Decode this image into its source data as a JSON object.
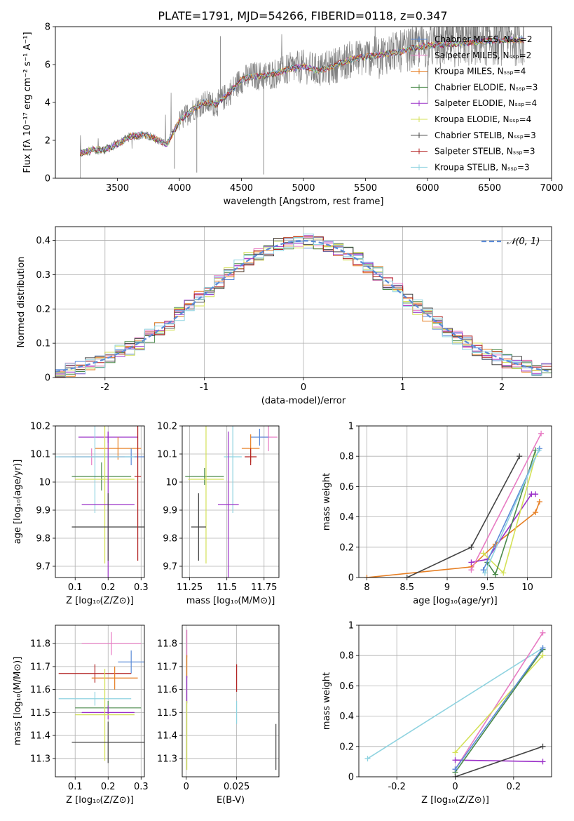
{
  "chart_data": [
    {
      "type": "line",
      "title": "PLATE=1791, MJD=54266, FIBERID=0118, z=0.347",
      "xlabel": "wavelength [Angstrom, rest frame]",
      "ylabel": "Flux [fλ 10⁻¹⁷ erg cm⁻² s⁻¹ A⁻¹]",
      "xlim": [
        3000,
        7000
      ],
      "ylim": [
        0,
        8
      ],
      "xticks": [
        3500,
        4000,
        4500,
        5000,
        5500,
        6000,
        6500,
        7000
      ],
      "yticks": [
        0,
        2,
        4,
        6,
        8
      ],
      "data_range": [
        3200,
        6780
      ],
      "continuum_anchors": [
        [
          3200,
          1.3
        ],
        [
          3300,
          1.5
        ],
        [
          3400,
          1.5
        ],
        [
          3500,
          1.8
        ],
        [
          3600,
          2.2
        ],
        [
          3700,
          2.3
        ],
        [
          3800,
          2.1
        ],
        [
          3900,
          1.8
        ],
        [
          4000,
          3.0
        ],
        [
          4100,
          3.6
        ],
        [
          4200,
          4.0
        ],
        [
          4300,
          3.9
        ],
        [
          4400,
          4.5
        ],
        [
          4500,
          5.2
        ],
        [
          4600,
          5.4
        ],
        [
          4700,
          5.4
        ],
        [
          4800,
          5.6
        ],
        [
          4900,
          5.8
        ],
        [
          5000,
          5.9
        ],
        [
          5100,
          5.7
        ],
        [
          5200,
          5.8
        ],
        [
          5300,
          6.1
        ],
        [
          5400,
          6.3
        ],
        [
          5500,
          6.4
        ],
        [
          5600,
          6.5
        ],
        [
          5700,
          6.6
        ],
        [
          5800,
          6.7
        ],
        [
          5900,
          6.9
        ],
        [
          6000,
          7.0
        ],
        [
          6200,
          7.1
        ],
        [
          6400,
          7.2
        ],
        [
          6600,
          7.3
        ],
        [
          6780,
          7.3
        ]
      ],
      "spikes": [
        [
          4140,
          0.3
        ],
        [
          4680,
          0.2
        ],
        [
          4330,
          7.5
        ],
        [
          3960,
          0.5
        ]
      ],
      "legend_position": "upper right",
      "series": [
        {
          "name": "Chabrier MILES, Nₛₛₚ=2",
          "color": "#5b8bd8"
        },
        {
          "name": "Salpeter MILES, Nₛₛₚ=2",
          "color": "#e77bc3"
        },
        {
          "name": "Kroupa MILES, Nₛₛₚ=4",
          "color": "#e67e22"
        },
        {
          "name": "Chabrier ELODIE, Nₛₛₚ=3",
          "color": "#4a8a4a"
        },
        {
          "name": "Salpeter ELODIE, Nₛₛₚ=4",
          "color": "#9b30c8"
        },
        {
          "name": "Kroupa ELODIE, Nₛₛₚ=4",
          "color": "#d4e157"
        },
        {
          "name": "Chabrier STELIB, Nₛₛₚ=3",
          "color": "#444444"
        },
        {
          "name": "Salpeter STELIB, Nₛₛₚ=3",
          "color": "#b22222"
        },
        {
          "name": "Kroupa STELIB, Nₛₛₚ=3",
          "color": "#8fd3e0"
        }
      ]
    },
    {
      "type": "line",
      "xlabel": "(data-model)/error",
      "ylabel": "Normed distribution",
      "xlim": [
        -2.5,
        2.5
      ],
      "ylim": [
        0,
        0.44
      ],
      "xticks": [
        -2,
        -1,
        0,
        1,
        2
      ],
      "yticks": [
        0.0,
        0.1,
        0.2,
        0.3,
        0.4
      ],
      "grid": true,
      "legend": "𝒩(0, 1)",
      "legend_position": "upper right",
      "curve": {
        "name": "𝒩(0, 1)",
        "mu": 0,
        "sigma": 1,
        "color": "#5b8bd8",
        "style": "dashed"
      },
      "histograms": {
        "bin_width": 0.1,
        "colors": [
          "#5b8bd8",
          "#e77bc3",
          "#e67e22",
          "#4a8a4a",
          "#9b30c8",
          "#d4e157",
          "#444444",
          "#b22222",
          "#8fd3e0"
        ]
      }
    },
    {
      "type": "scatter",
      "xlabel": "Z [log₁₀(Z/Z⊙)]",
      "ylabel": "age  [log₁₀(age/yr)]",
      "xlim": [
        0.04,
        0.31
      ],
      "ylim": [
        9.66,
        10.2
      ],
      "xticks": [
        0.1,
        0.2,
        0.3
      ],
      "yticks": [
        9.7,
        9.8,
        9.9,
        10.0,
        10.1,
        10.2
      ],
      "points": [
        {
          "x": 0.2,
          "y": 10.16,
          "xerr": 0.09,
          "yerr": 0.02,
          "color": "#9b30c8"
        },
        {
          "x": 0.23,
          "y": 10.12,
          "xerr": 0.07,
          "yerr": 0.04,
          "color": "#e67e22"
        },
        {
          "x": 0.27,
          "y": 10.09,
          "xerr": 0.18,
          "yerr": 0.03,
          "color": "#5b8bd8"
        },
        {
          "x": 0.15,
          "y": 10.09,
          "xerr": 0.1,
          "yerr": 0.03,
          "color": "#e77bc3"
        },
        {
          "x": 0.16,
          "y": 10.09,
          "xerr": 0.12,
          "yerr": 0.2,
          "color": "#8fd3e0"
        },
        {
          "x": 0.18,
          "y": 10.02,
          "xerr": 0.09,
          "yerr": 0.05,
          "color": "#4a8a4a"
        },
        {
          "x": 0.19,
          "y": 10.01,
          "xerr": 0.09,
          "yerr": 0.3,
          "color": "#d4e157"
        },
        {
          "x": 0.2,
          "y": 9.92,
          "xerr": 0.08,
          "yerr": 0.26,
          "color": "#9b30c8"
        },
        {
          "x": 0.2,
          "y": 9.84,
          "xerr": 0.11,
          "yerr": 0.12,
          "color": "#444444"
        },
        {
          "x": 0.29,
          "y": 10.02,
          "xerr": 0.01,
          "yerr": 0.3,
          "color": "#b22222"
        }
      ]
    },
    {
      "type": "scatter",
      "xlabel": "mass [log₁₀(M/M⊙)]",
      "xlim": [
        11.2,
        11.85
      ],
      "ylim": [
        9.66,
        10.2
      ],
      "xticks": [
        11.25,
        11.5,
        11.75
      ],
      "yticks": [
        9.7,
        9.8,
        9.9,
        10.0,
        10.1,
        10.2
      ],
      "points": [
        {
          "x": 11.78,
          "y": 10.16,
          "xerr": 0.06,
          "yerr": 0.05,
          "color": "#e77bc3"
        },
        {
          "x": 11.72,
          "y": 10.16,
          "xerr": 0.06,
          "yerr": 0.03,
          "color": "#5b8bd8"
        },
        {
          "x": 11.66,
          "y": 10.12,
          "xerr": 0.06,
          "yerr": 0.05,
          "color": "#e67e22"
        },
        {
          "x": 11.66,
          "y": 10.09,
          "xerr": 0.04,
          "yerr": 0.03,
          "color": "#b22222"
        },
        {
          "x": 11.54,
          "y": 10.09,
          "xerr": 0.06,
          "yerr": 0.2,
          "color": "#8fd3e0"
        },
        {
          "x": 11.35,
          "y": 10.02,
          "xerr": 0.13,
          "yerr": 0.03,
          "color": "#4a8a4a"
        },
        {
          "x": 11.36,
          "y": 10.01,
          "xerr": 0.12,
          "yerr": 0.3,
          "color": "#d4e157"
        },
        {
          "x": 11.51,
          "y": 9.92,
          "xerr": 0.07,
          "yerr": 0.26,
          "color": "#9b30c8"
        },
        {
          "x": 11.31,
          "y": 9.84,
          "xerr": 0.05,
          "yerr": 0.12,
          "color": "#444444"
        }
      ]
    },
    {
      "type": "line",
      "xlabel": "age  [log₁₀(age/yr)]",
      "ylabel": "mass weight",
      "xlim": [
        7.9,
        10.3
      ],
      "ylim": [
        0,
        1.0
      ],
      "xticks": [
        8.0,
        8.5,
        9.0,
        9.5,
        10.0
      ],
      "yticks": [
        0.0,
        0.2,
        0.4,
        0.6,
        0.8,
        1.0
      ],
      "grid": true,
      "series": [
        {
          "color": "#e67e22",
          "x": [
            8.0,
            9.3,
            9.6,
            10.1,
            10.15
          ],
          "y": [
            0.0,
            0.07,
            0.22,
            0.43,
            0.5
          ]
        },
        {
          "color": "#444444",
          "x": [
            8.5,
            9.3,
            9.9
          ],
          "y": [
            0.0,
            0.2,
            0.8
          ]
        },
        {
          "color": "#9b30c8",
          "x": [
            9.3,
            9.5,
            10.05,
            10.1
          ],
          "y": [
            0.1,
            0.12,
            0.55,
            0.55
          ]
        },
        {
          "color": "#d4e157",
          "x": [
            9.45,
            9.7,
            10.1
          ],
          "y": [
            0.16,
            0.03,
            0.8
          ]
        },
        {
          "color": "#4a8a4a",
          "x": [
            9.5,
            9.6,
            10.1
          ],
          "y": [
            0.1,
            0.02,
            0.84
          ]
        },
        {
          "color": "#e77bc3",
          "x": [
            9.3,
            10.17
          ],
          "y": [
            0.05,
            0.95
          ]
        },
        {
          "color": "#5b8bd8",
          "x": [
            9.45,
            10.15
          ],
          "y": [
            0.05,
            0.85
          ]
        },
        {
          "color": "#8fd3e0",
          "x": [
            9.47,
            10.14
          ],
          "y": [
            0.03,
            0.84
          ]
        }
      ]
    },
    {
      "type": "scatter",
      "xlabel": "Z [log₁₀(Z/Z⊙)]",
      "ylabel": "mass [log₁₀(M/M⊙)]",
      "xlim": [
        0.04,
        0.31
      ],
      "ylim": [
        11.22,
        11.88
      ],
      "xticks": [
        0.1,
        0.2,
        0.3
      ],
      "yticks": [
        11.3,
        11.4,
        11.5,
        11.6,
        11.7,
        11.8
      ],
      "points": [
        {
          "x": 0.21,
          "y": 11.8,
          "xerr": 0.09,
          "yerr": 0.05,
          "color": "#e77bc3"
        },
        {
          "x": 0.27,
          "y": 11.72,
          "xerr": 0.04,
          "yerr": 0.05,
          "color": "#5b8bd8"
        },
        {
          "x": 0.16,
          "y": 11.67,
          "xerr": 0.11,
          "yerr": 0.04,
          "color": "#b22222"
        },
        {
          "x": 0.22,
          "y": 11.65,
          "xerr": 0.07,
          "yerr": 0.05,
          "color": "#e67e22"
        },
        {
          "x": 0.16,
          "y": 11.56,
          "xerr": 0.11,
          "yerr": 0.03,
          "color": "#8fd3e0"
        },
        {
          "x": 0.2,
          "y": 11.52,
          "xerr": 0.1,
          "yerr": 0.03,
          "color": "#4a8a4a"
        },
        {
          "x": 0.2,
          "y": 11.5,
          "xerr": 0.08,
          "yerr": 0.03,
          "color": "#9b30c8"
        },
        {
          "x": 0.19,
          "y": 11.49,
          "xerr": 0.09,
          "yerr": 0.2,
          "color": "#d4e157"
        },
        {
          "x": 0.2,
          "y": 11.37,
          "xerr": 0.11,
          "yerr": 0.09,
          "color": "#444444"
        }
      ]
    },
    {
      "type": "scatter",
      "xlabel": "E(B-V)",
      "xlim": [
        -0.002,
        0.046
      ],
      "ylim": [
        11.22,
        11.88
      ],
      "xticks": [
        0.0,
        0.025
      ],
      "yticks": [
        11.3,
        11.4,
        11.5,
        11.6,
        11.7,
        11.8
      ],
      "points": [
        {
          "x": 0.0003,
          "y": 11.8,
          "yerr": 0.06,
          "color": "#e77bc3"
        },
        {
          "x": 0.0003,
          "y": 11.7,
          "yerr": 0.05,
          "color": "#e67e22"
        },
        {
          "x": 0.0003,
          "y": 11.6,
          "yerr": 0.06,
          "color": "#9b30c8"
        },
        {
          "x": 0.0003,
          "y": 11.4,
          "yerr": 0.15,
          "color": "#d4e157"
        },
        {
          "x": 0.025,
          "y": 11.65,
          "yerr": 0.06,
          "color": "#b22222"
        },
        {
          "x": 0.025,
          "y": 11.5,
          "yerr": 0.05,
          "color": "#8fd3e0"
        },
        {
          "x": 0.0445,
          "y": 11.35,
          "yerr": 0.1,
          "color": "#444444"
        }
      ]
    },
    {
      "type": "line",
      "xlabel": "Z [log₁₀(Z/Z⊙)]",
      "ylabel": "mass weight",
      "xlim": [
        -0.33,
        0.33
      ],
      "ylim": [
        0,
        1.0
      ],
      "xticks": [
        -0.2,
        0.0,
        0.2
      ],
      "yticks": [
        0.0,
        0.2,
        0.4,
        0.6,
        0.8,
        1.0
      ],
      "grid": true,
      "series": [
        {
          "color": "#8fd3e0",
          "x": [
            -0.3,
            0.3
          ],
          "y": [
            0.12,
            0.85
          ]
        },
        {
          "color": "#e77bc3",
          "x": [
            0.0,
            0.3
          ],
          "y": [
            0.05,
            0.95
          ]
        },
        {
          "color": "#9b30c8",
          "x": [
            0.0,
            0.3
          ],
          "y": [
            0.11,
            0.1
          ]
        },
        {
          "color": "#d4e157",
          "x": [
            0.0,
            0.3
          ],
          "y": [
            0.16,
            0.8
          ]
        },
        {
          "color": "#4a8a4a",
          "x": [
            0.0,
            0.3
          ],
          "y": [
            0.03,
            0.84
          ]
        },
        {
          "color": "#444444",
          "x": [
            0.0,
            0.3
          ],
          "y": [
            0.0,
            0.2
          ]
        },
        {
          "color": "#5b8bd8",
          "x": [
            0.0,
            0.3
          ],
          "y": [
            0.05,
            0.85
          ]
        }
      ]
    }
  ]
}
